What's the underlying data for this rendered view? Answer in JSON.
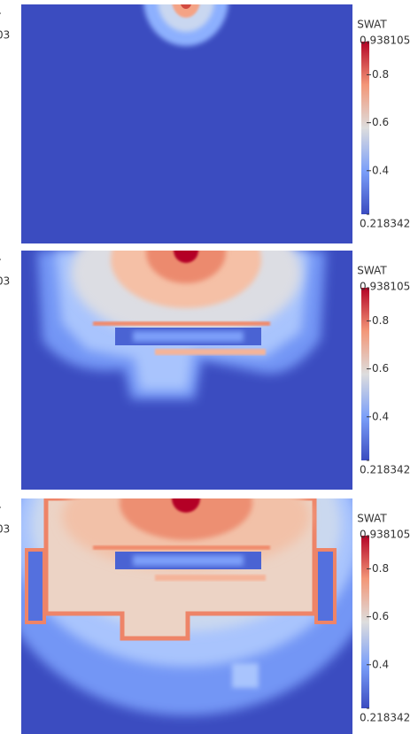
{
  "panels": [
    {
      "edge_labels": [
        "r",
        "03"
      ],
      "colorbar": {
        "title": "SWAT",
        "max": 0.938105,
        "min": 0.218342,
        "ticks": [
          0.4,
          0.6,
          0.8
        ]
      }
    },
    {
      "edge_labels": [
        "r",
        "03"
      ],
      "colorbar": {
        "title": "SWAT",
        "max": 0.938105,
        "min": 0.218342,
        "ticks": [
          0.4,
          0.6,
          0.8
        ]
      }
    },
    {
      "edge_labels": [
        "r",
        "03"
      ],
      "colorbar": {
        "title": "SWAT",
        "max": 0.938105,
        "min": 0.218342,
        "ticks": [
          0.4,
          0.6,
          0.8
        ]
      }
    }
  ]
}
